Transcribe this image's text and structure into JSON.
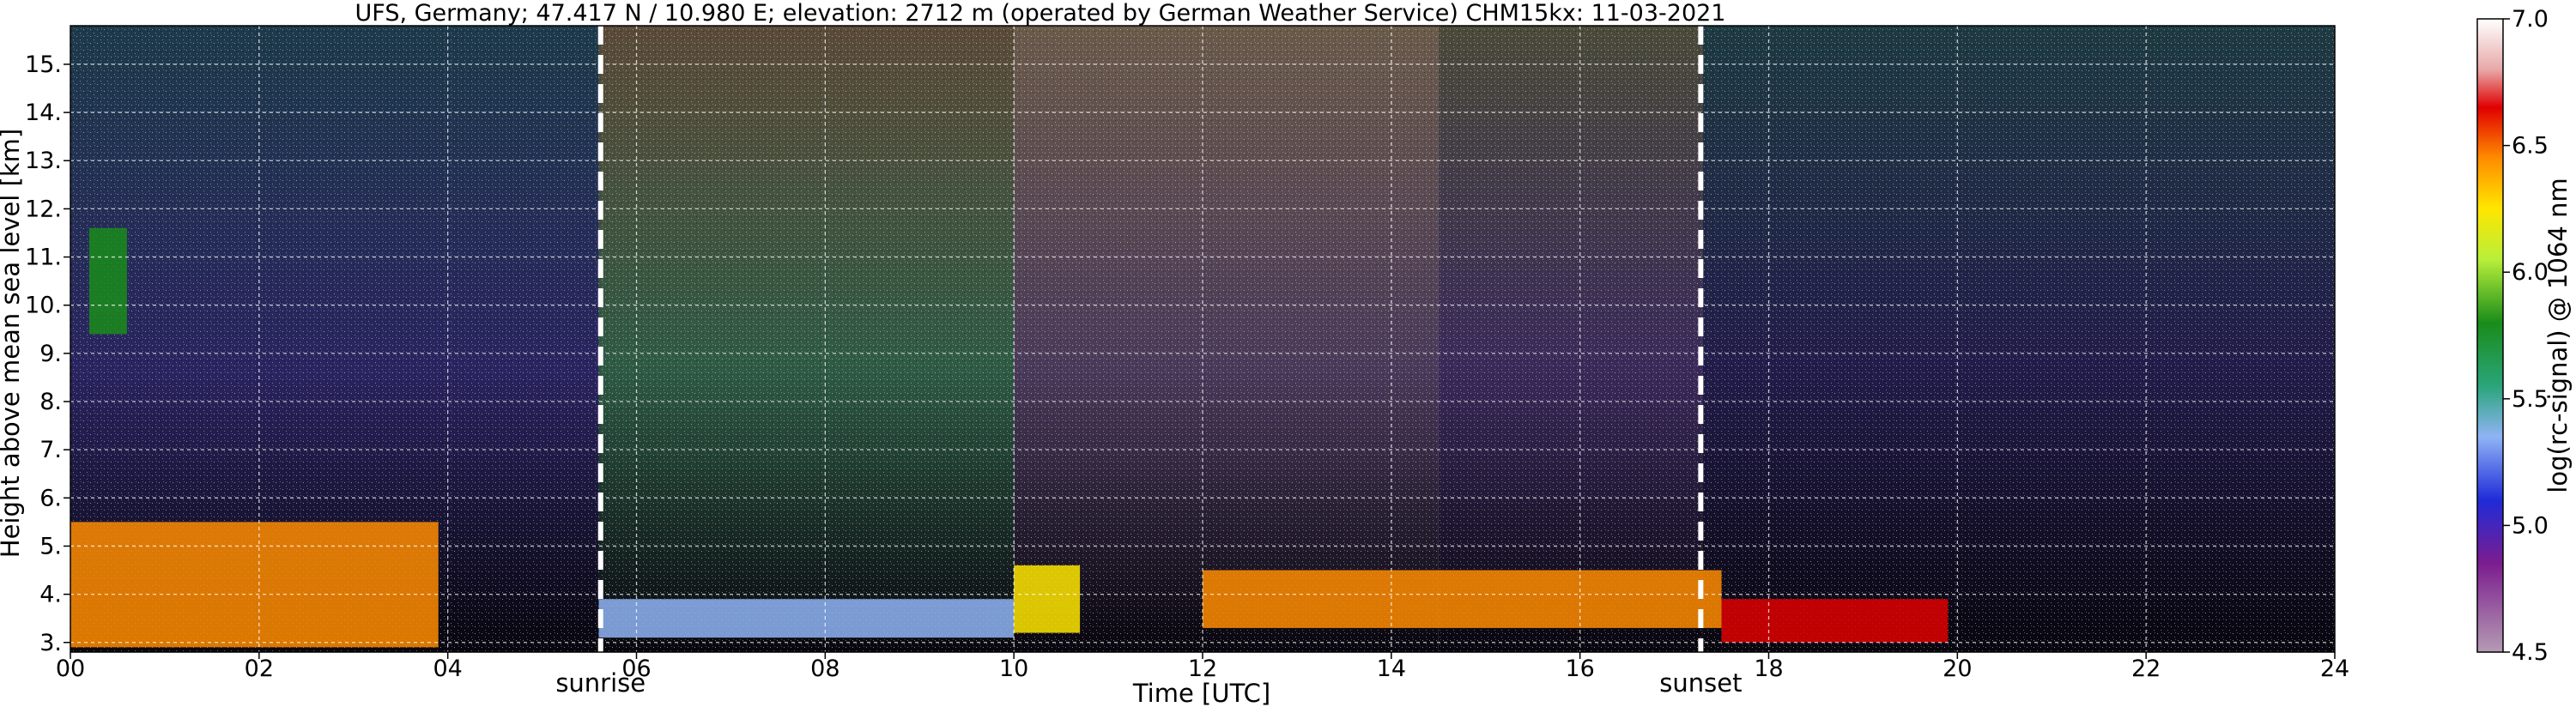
{
  "chart_data": {
    "type": "heatmap",
    "title": "UFS, Germany; 47.417 N / 10.980 E; elevation: 2712 m  (operated by German Weather Service)    CHM15kx: 11-03-2021",
    "xlabel": "Time [UTC]",
    "ylabel": "Height above mean sea level [km]",
    "xlim": [
      0,
      24
    ],
    "ylim": [
      2.8,
      15.8
    ],
    "x_ticks": [
      "00",
      "02",
      "04",
      "06",
      "08",
      "10",
      "12",
      "14",
      "16",
      "18",
      "20",
      "22",
      "24"
    ],
    "y_ticks": [
      "3.",
      "4.",
      "5.",
      "6.",
      "7.",
      "8.",
      "9.",
      "10.",
      "11.",
      "12.",
      "13.",
      "14.",
      "15."
    ],
    "grid": true,
    "colorbar": {
      "label": "log(rc-signal) @ 1064 nm",
      "range": [
        4.5,
        7.0
      ],
      "ticks": [
        "4.5",
        "5.0",
        "5.5",
        "6.0",
        "6.5",
        "7.0"
      ]
    },
    "markers": [
      {
        "label": "sunrise",
        "time_utc": 5.62
      },
      {
        "label": "sunset",
        "time_utc": 17.28
      }
    ],
    "features": [
      {
        "time_range": [
          0.0,
          3.9
        ],
        "height_km": [
          2.9,
          5.5
        ],
        "log_signal": 6.6
      },
      {
        "time_range": [
          0.2,
          0.6
        ],
        "height_km": [
          9.4,
          11.6
        ],
        "log_signal": 5.9
      },
      {
        "time_range": [
          5.6,
          10.0
        ],
        "height_km": [
          3.1,
          3.9
        ],
        "log_signal": 5.4
      },
      {
        "time_range": [
          10.0,
          10.7
        ],
        "height_km": [
          3.2,
          4.6
        ],
        "log_signal": 6.4
      },
      {
        "time_range": [
          12.0,
          17.5
        ],
        "height_km": [
          3.3,
          4.5
        ],
        "log_signal": 6.5
      },
      {
        "time_range": [
          17.5,
          19.9
        ],
        "height_km": [
          3.0,
          3.9
        ],
        "log_signal": 6.7
      }
    ]
  }
}
